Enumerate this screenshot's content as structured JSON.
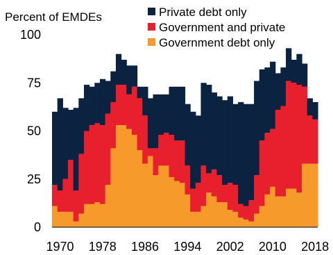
{
  "chart_data": {
    "type": "area",
    "stacked": true,
    "title": "",
    "ylabel": "Percent of EMDEs",
    "xlabel": "",
    "ylim": [
      0,
      100
    ],
    "yticks": [
      0,
      25,
      50,
      75,
      100
    ],
    "xticks": [
      1970,
      1978,
      1986,
      1994,
      2002,
      2010,
      2018
    ],
    "grid": false,
    "legend_position": "top-right",
    "years": [
      1969,
      1970,
      1971,
      1972,
      1973,
      1974,
      1975,
      1976,
      1977,
      1978,
      1979,
      1980,
      1981,
      1982,
      1983,
      1984,
      1985,
      1986,
      1987,
      1988,
      1989,
      1990,
      1991,
      1992,
      1993,
      1994,
      1995,
      1996,
      1997,
      1998,
      1999,
      2000,
      2001,
      2002,
      2003,
      2004,
      2005,
      2006,
      2007,
      2008,
      2009,
      2010,
      2011,
      2012,
      2013,
      2014,
      2015,
      2016,
      2017,
      2018
    ],
    "series": [
      {
        "name": "Government debt only",
        "color": "#f59a2b",
        "values": [
          11,
          8,
          8,
          8,
          3,
          7,
          12,
          12,
          13,
          12,
          22,
          41,
          53,
          53,
          51,
          48,
          40,
          33,
          37,
          27,
          32,
          32,
          26,
          24,
          23,
          17,
          8,
          8,
          11,
          18,
          16,
          13,
          13,
          9,
          8,
          5,
          4,
          3,
          7,
          11,
          17,
          21,
          16,
          16,
          20,
          20,
          18,
          33,
          33,
          33
        ]
      },
      {
        "name": "Government and private",
        "color": "#e8202d",
        "values": [
          11,
          11,
          17,
          27,
          16,
          31,
          38,
          41,
          41,
          41,
          37,
          24,
          21,
          21,
          18,
          25,
          27,
          25,
          4,
          14,
          16,
          17,
          22,
          21,
          22,
          15,
          12,
          15,
          21,
          10,
          14,
          14,
          9,
          14,
          14,
          7,
          7,
          11,
          20,
          34,
          32,
          30,
          45,
          47,
          56,
          55,
          56,
          40,
          25,
          23
        ]
      },
      {
        "name": "Private debt only",
        "color": "#0b2340",
        "values": [
          38,
          48,
          37,
          26,
          43,
          29,
          24,
          20,
          21,
          24,
          17,
          16,
          16,
          13,
          15,
          11,
          6,
          15,
          26,
          28,
          21,
          20,
          25,
          28,
          28,
          32,
          40,
          35,
          43,
          46,
          40,
          41,
          44,
          45,
          42,
          53,
          53,
          50,
          49,
          37,
          34,
          35,
          19,
          20,
          17,
          12,
          16,
          12,
          9,
          9
        ]
      }
    ]
  }
}
